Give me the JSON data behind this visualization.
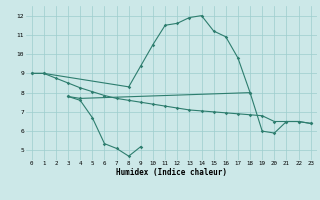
{
  "color": "#2d7d6e",
  "bg_color": "#cce8e8",
  "grid_color": "#9ecece",
  "xlabel": "Humidex (Indice chaleur)",
  "xlim": [
    -0.5,
    23.5
  ],
  "ylim": [
    4.5,
    12.5
  ],
  "yticks": [
    5,
    6,
    7,
    8,
    9,
    10,
    11,
    12
  ],
  "xticks": [
    0,
    1,
    2,
    3,
    4,
    5,
    6,
    7,
    8,
    9,
    10,
    11,
    12,
    13,
    14,
    15,
    16,
    17,
    18,
    19,
    20,
    21,
    22,
    23
  ],
  "curve_main_x": [
    0,
    1,
    8,
    9,
    10,
    11,
    12,
    13,
    14,
    15,
    16,
    17,
    18
  ],
  "curve_main_y": [
    9.0,
    9.0,
    8.3,
    9.4,
    10.5,
    11.5,
    11.6,
    11.9,
    12.0,
    11.2,
    10.9,
    9.8,
    8.0
  ],
  "curve_dip_x": [
    3,
    4,
    5,
    6,
    7,
    8,
    9
  ],
  "curve_dip_y": [
    7.8,
    7.6,
    6.7,
    5.35,
    5.1,
    4.7,
    5.2
  ],
  "curve_upper_x": [
    0,
    1,
    2,
    3,
    4,
    5,
    6,
    7,
    8,
    9,
    10,
    11,
    12,
    13,
    14,
    15,
    16,
    17,
    18,
    19,
    20,
    21,
    22,
    23
  ],
  "curve_upper_y": [
    9.0,
    9.0,
    8.75,
    8.5,
    8.25,
    8.05,
    7.85,
    7.7,
    7.6,
    7.5,
    7.4,
    7.3,
    7.2,
    7.1,
    7.05,
    7.0,
    6.95,
    6.9,
    6.85,
    6.8,
    6.5,
    6.5,
    6.5,
    6.4
  ],
  "curve_lower_x": [
    3,
    4,
    18,
    19,
    20,
    21,
    22,
    23
  ],
  "curve_lower_y": [
    7.8,
    7.7,
    8.0,
    6.0,
    5.9,
    6.5,
    6.5,
    6.4
  ]
}
